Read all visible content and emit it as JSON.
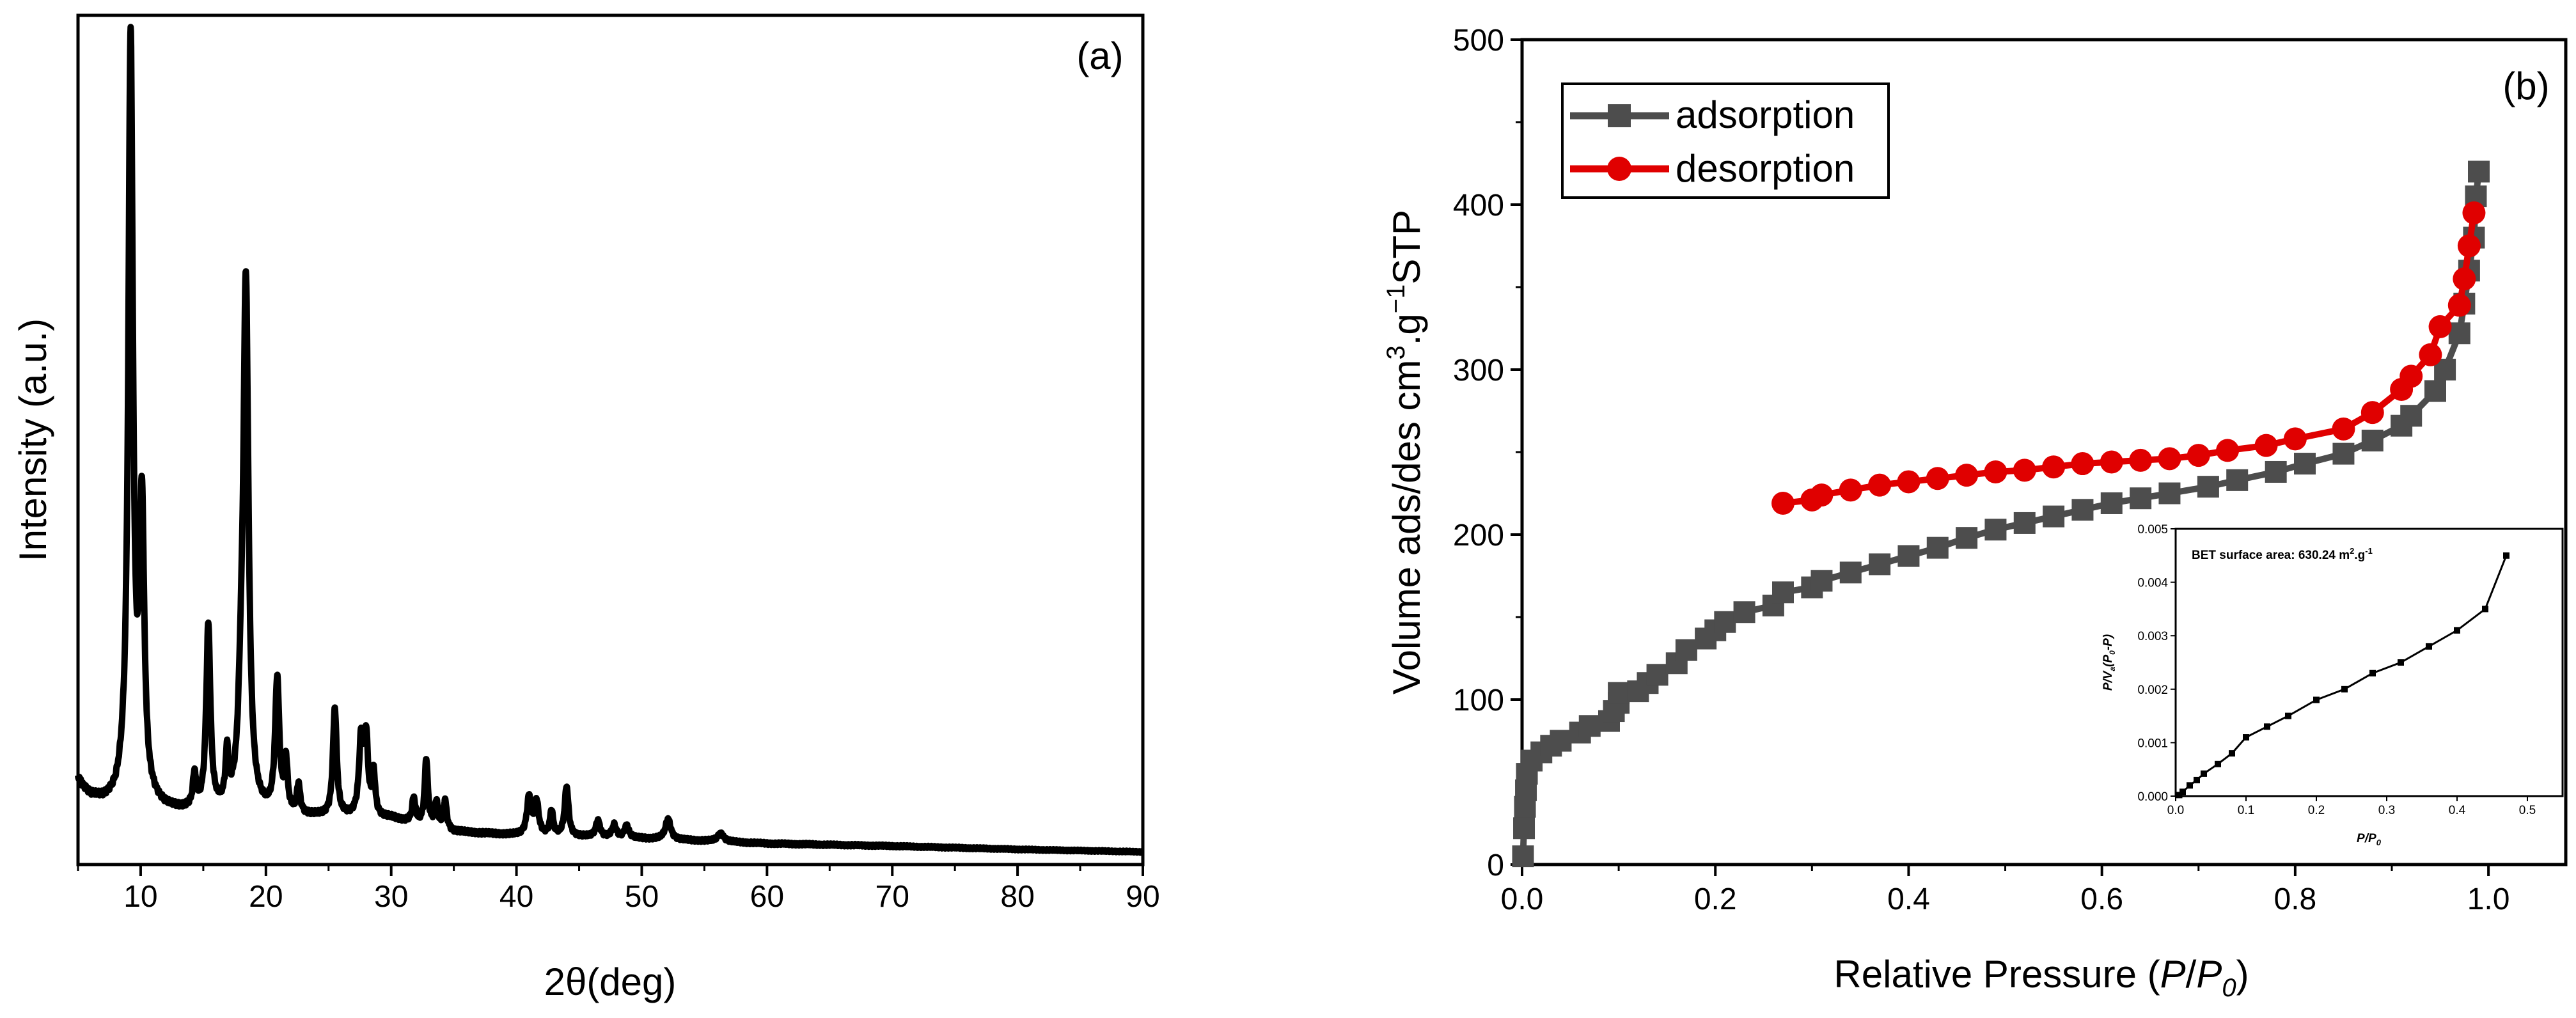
{
  "colors": {
    "adsorption": "#4d4d4d",
    "desorption": "#e00000",
    "xrd": "#000000"
  },
  "chart_data": [
    {
      "type": "line",
      "panel": "(a)",
      "xlabel": "2θ(deg)",
      "ylabel": "Intensity (a.u.)",
      "xlim": [
        5,
        90
      ],
      "ylim": [
        0,
        100
      ],
      "xticks": [
        "10",
        "20",
        "30",
        "40",
        "50",
        "60",
        "70",
        "80",
        "90"
      ],
      "baseline": [
        [
          5,
          9.5
        ],
        [
          5.3,
          8.5
        ],
        [
          6,
          7.2
        ],
        [
          7,
          6.6
        ],
        [
          8,
          6.6
        ],
        [
          8.6,
          7.6
        ],
        [
          11,
          6.2
        ],
        [
          12,
          5.6
        ],
        [
          14,
          5.4
        ],
        [
          16,
          5.3
        ],
        [
          20,
          5.0
        ],
        [
          24,
          4.8
        ],
        [
          30,
          4.6
        ],
        [
          35,
          3.0
        ],
        [
          40,
          2.6
        ],
        [
          50,
          2.2
        ],
        [
          60,
          1.6
        ],
        [
          70,
          1.3
        ],
        [
          80,
          0.9
        ],
        [
          90,
          0.6
        ]
      ],
      "peaks": [
        {
          "x": 9.2,
          "h": 91,
          "w": 0.22
        },
        {
          "x": 10.1,
          "h": 34,
          "w": 0.22
        },
        {
          "x": 14.3,
          "h": 4,
          "w": 0.15
        },
        {
          "x": 15.4,
          "h": 22,
          "w": 0.2
        },
        {
          "x": 16.9,
          "h": 6,
          "w": 0.15
        },
        {
          "x": 18.4,
          "h": 63,
          "w": 0.25
        },
        {
          "x": 18.0,
          "h": 8,
          "w": 0.25
        },
        {
          "x": 20.9,
          "h": 16,
          "w": 0.2
        },
        {
          "x": 21.6,
          "h": 6,
          "w": 0.15
        },
        {
          "x": 22.6,
          "h": 3.5,
          "w": 0.15
        },
        {
          "x": 25.5,
          "h": 13,
          "w": 0.18
        },
        {
          "x": 27.6,
          "h": 9,
          "w": 0.2
        },
        {
          "x": 28.0,
          "h": 9,
          "w": 0.18
        },
        {
          "x": 28.6,
          "h": 5,
          "w": 0.15
        },
        {
          "x": 31.8,
          "h": 3,
          "w": 0.15
        },
        {
          "x": 32.8,
          "h": 8,
          "w": 0.15
        },
        {
          "x": 33.6,
          "h": 3,
          "w": 0.15
        },
        {
          "x": 34.3,
          "h": 3.5,
          "w": 0.15
        },
        {
          "x": 41.0,
          "h": 4.5,
          "w": 0.2
        },
        {
          "x": 41.6,
          "h": 4,
          "w": 0.2
        },
        {
          "x": 42.8,
          "h": 3,
          "w": 0.15
        },
        {
          "x": 44.0,
          "h": 6,
          "w": 0.18
        },
        {
          "x": 46.5,
          "h": 2,
          "w": 0.2
        },
        {
          "x": 47.8,
          "h": 1.5,
          "w": 0.2
        },
        {
          "x": 48.8,
          "h": 1.5,
          "w": 0.2
        },
        {
          "x": 52.1,
          "h": 2.5,
          "w": 0.25
        },
        {
          "x": 56.3,
          "h": 1,
          "w": 0.3
        }
      ]
    },
    {
      "type": "line",
      "panel": "(b)",
      "xlabel": "Relative Pressure (P/P0)",
      "ylabel": "Volume ads/des cm3.g−1STP",
      "xlim": [
        0,
        1.08
      ],
      "ylim": [
        0,
        500
      ],
      "xticks": [
        "0.0",
        "0.2",
        "0.4",
        "0.6",
        "0.8",
        "1.0"
      ],
      "yticks": [
        "0",
        "100",
        "200",
        "300",
        "400",
        "500"
      ],
      "legend": "top-left",
      "series": [
        {
          "name": "adsorption",
          "marker": "square",
          "x": [
            0.001,
            0.002,
            0.003,
            0.004,
            0.005,
            0.01,
            0.02,
            0.03,
            0.04,
            0.06,
            0.07,
            0.09,
            0.095,
            0.1,
            0.1,
            0.12,
            0.13,
            0.14,
            0.16,
            0.17,
            0.19,
            0.2,
            0.21,
            0.23,
            0.26,
            0.27,
            0.3,
            0.31,
            0.34,
            0.37,
            0.4,
            0.43,
            0.46,
            0.49,
            0.52,
            0.55,
            0.58,
            0.61,
            0.64,
            0.67,
            0.71,
            0.74,
            0.78,
            0.81,
            0.85,
            0.88,
            0.91,
            0.92,
            0.945,
            0.955,
            0.97,
            0.975,
            0.98,
            0.985,
            0.987,
            0.99
          ],
          "y": [
            5,
            22,
            35,
            45,
            55,
            63,
            68,
            72,
            75,
            80,
            84,
            87,
            93,
            98,
            104,
            105,
            110,
            115,
            122,
            130,
            137,
            142,
            147,
            153,
            157,
            165,
            168,
            172,
            177,
            182,
            187,
            192,
            198,
            203,
            207,
            211,
            215,
            219,
            222,
            225,
            229,
            233,
            238,
            243,
            249,
            257,
            266,
            272,
            287,
            300,
            322,
            340,
            360,
            380,
            405,
            420
          ]
        },
        {
          "name": "desorption",
          "marker": "circle",
          "x": [
            0.27,
            0.3,
            0.31,
            0.34,
            0.37,
            0.4,
            0.43,
            0.46,
            0.49,
            0.52,
            0.55,
            0.58,
            0.61,
            0.64,
            0.67,
            0.7,
            0.73,
            0.77,
            0.8,
            0.85,
            0.88,
            0.91,
            0.92,
            0.94,
            0.95,
            0.97,
            0.975,
            0.98,
            0.985
          ],
          "y": [
            219,
            221,
            224,
            227,
            230,
            232,
            234,
            236,
            238,
            239,
            241,
            243,
            244,
            245,
            246,
            248,
            251,
            254,
            258,
            264,
            274,
            288,
            296,
            309,
            326,
            339,
            355,
            375,
            395
          ]
        }
      ]
    },
    {
      "type": "line",
      "panel": "(b) inset",
      "title": "BET surface area: 630.24 m2.g-1",
      "xlabel": "P/P0",
      "ylabel": "P/Va(P0-P)",
      "xlim": [
        0,
        0.55
      ],
      "ylim": [
        0,
        0.005
      ],
      "xticks": [
        "0.0",
        "0.1",
        "0.2",
        "0.3",
        "0.4",
        "0.5"
      ],
      "yticks": [
        "0.000",
        "0.001",
        "0.002",
        "0.003",
        "0.004",
        "0.005"
      ],
      "series": [
        {
          "name": "BET",
          "x": [
            0.005,
            0.01,
            0.02,
            0.03,
            0.04,
            0.06,
            0.08,
            0.1,
            0.13,
            0.16,
            0.2,
            0.24,
            0.28,
            0.32,
            0.36,
            0.4,
            0.44,
            0.47
          ],
          "y": [
            2e-05,
            8e-05,
            0.0002,
            0.0003,
            0.00042,
            0.0006,
            0.0008,
            0.0011,
            0.0013,
            0.0015,
            0.0018,
            0.002,
            0.0023,
            0.0025,
            0.0028,
            0.0031,
            0.0035,
            0.0045
          ]
        }
      ]
    }
  ],
  "labels": {
    "panel_a": "(a)",
    "panel_b": "(b)",
    "a_ylabel": "Intensity (a.u.)",
    "a_xlabel_theta": "2θ",
    "a_xlabel_unit": "(deg)",
    "b_xlabel_pre": "Relative Pressure (",
    "b_xlabel_P": "P",
    "b_xlabel_slash": "/",
    "b_xlabel_P0": "P",
    "b_xlabel_sub0": "0",
    "b_xlabel_post": ")",
    "b_ylabel_main": "Volume ads/des cm",
    "b_ylabel_sup3": "3",
    "b_ylabel_g": ".g",
    "b_ylabel_supm1": "−1",
    "b_ylabel_stp": "STP",
    "legend_ads": "adsorption",
    "legend_des": "desorption",
    "inset_title_main": "BET surface area: 630.24 m",
    "inset_title_sup2": "2",
    "inset_title_g": ".g",
    "inset_title_supm1": "-1",
    "inset_xlabel_P": "P",
    "inset_xlabel_slash": "/",
    "inset_xlabel_P0": "P",
    "inset_xlabel_sub0": "0",
    "inset_ylabel_P": "P/V",
    "inset_ylabel_a": "a",
    "inset_ylabel_open": "(P",
    "inset_ylabel_0": "0",
    "inset_ylabel_close": "-P)"
  }
}
